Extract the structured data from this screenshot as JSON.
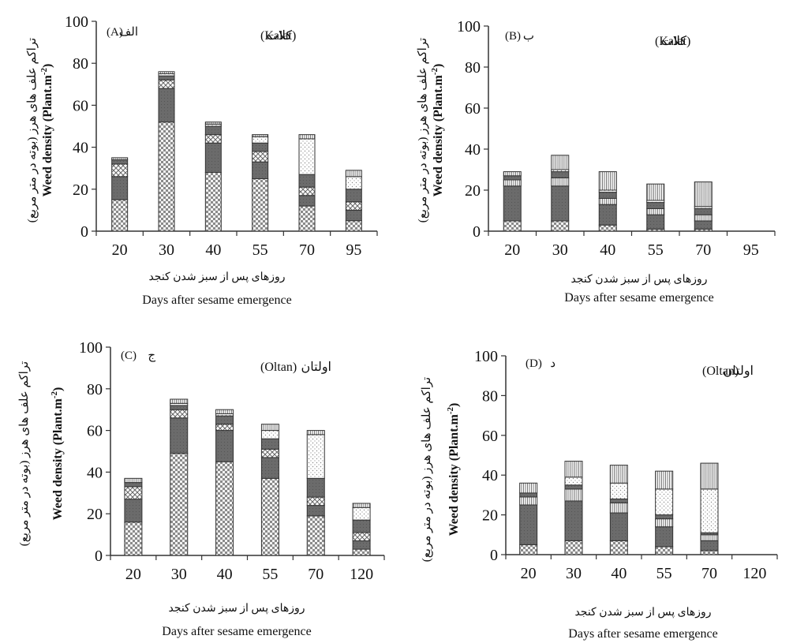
{
  "figure": {
    "colors": {
      "axis": "#333333",
      "tick_text": "#111111",
      "bar_outline": "#333333"
    }
  },
  "chart_data": [
    {
      "type": "bar",
      "stacked": true,
      "panel_label": "(A)",
      "panel_label_fa": "الف",
      "location": "(Kalat)",
      "location_fa": "کلات",
      "categories": [
        "20",
        "30",
        "40",
        "55",
        "70",
        "95"
      ],
      "ylim": [
        0,
        100
      ],
      "yticks": [
        "0",
        "20",
        "40",
        "60",
        "80",
        "100"
      ],
      "ylabel": "Weed density (Plant.m",
      "ylabel_sup": "-2",
      "ylabel_close": ")",
      "ylabel_fa": "تراکم علف های هرز (بوته در متر مربع)",
      "xlabel": "Days after sesame emergence",
      "xlabel_fa": "روزهای پس از سبز شدن کنجد",
      "series": [
        {
          "style": "checker",
          "values": [
            15,
            52,
            28,
            25,
            12,
            5
          ]
        },
        {
          "style": "dark",
          "values": [
            11,
            16,
            14,
            8,
            5,
            5
          ]
        },
        {
          "style": "crossed",
          "values": [
            6,
            4,
            4,
            5,
            4,
            4
          ]
        },
        {
          "style": "dark",
          "values": [
            2,
            2,
            4,
            4,
            6,
            6
          ]
        },
        {
          "style": "dotted",
          "values": [
            0,
            1,
            1,
            3,
            17,
            6
          ]
        },
        {
          "style": "hatched",
          "values": [
            1,
            1,
            1,
            1,
            2,
            3
          ]
        }
      ]
    },
    {
      "type": "bar",
      "stacked": true,
      "panel_label": "(B)",
      "panel_label_fa": "ب",
      "location": "(Kalat)",
      "location_fa": "کلات",
      "categories": [
        "20",
        "30",
        "40",
        "55",
        "70",
        "95"
      ],
      "ylim": [
        0,
        100
      ],
      "yticks": [
        "0",
        "20",
        "40",
        "60",
        "80",
        "100"
      ],
      "ylabel": "Weed density (Plant.m",
      "ylabel_sup": "-2",
      "ylabel_close": ")",
      "ylabel_fa": "تراکم علف های هرز (بوته در متر مربع)",
      "xlabel": "Days after sesame emergence",
      "xlabel_fa": "روزهای پس از سبز شدن کنجد",
      "series": [
        {
          "style": "checker",
          "values": [
            5,
            5,
            3,
            1,
            1,
            0
          ]
        },
        {
          "style": "dark",
          "values": [
            17,
            17,
            10,
            7,
            4,
            0
          ]
        },
        {
          "style": "hatched",
          "values": [
            3,
            4,
            3,
            3,
            3,
            0
          ]
        },
        {
          "style": "dark",
          "values": [
            2,
            3,
            3,
            3,
            3,
            0
          ]
        },
        {
          "style": "dotted",
          "values": [
            0,
            1,
            1,
            1,
            1,
            0
          ]
        },
        {
          "style": "hatched",
          "values": [
            2,
            7,
            9,
            8,
            12,
            0
          ]
        }
      ]
    },
    {
      "type": "bar",
      "stacked": true,
      "panel_label": "(C)",
      "panel_label_fa": "ج",
      "location": "(Oltan)",
      "location_fa": "اولتان",
      "categories": [
        "20",
        "30",
        "40",
        "55",
        "70",
        "120"
      ],
      "ylim": [
        0,
        100
      ],
      "yticks": [
        "0",
        "20",
        "40",
        "60",
        "80",
        "100"
      ],
      "ylabel": "Weed density (Plant.m",
      "ylabel_sup": "-2",
      "ylabel_close": ")",
      "ylabel_fa": "تراکم علف های هرز (بوته در متر مربع)",
      "xlabel": "Days after sesame emergence",
      "xlabel_fa": "روزهای پس از سبز شدن کنجد",
      "series": [
        {
          "style": "checker",
          "values": [
            16,
            49,
            45,
            37,
            19,
            3
          ]
        },
        {
          "style": "dark",
          "values": [
            11,
            17,
            15,
            10,
            5,
            4
          ]
        },
        {
          "style": "crossed",
          "values": [
            6,
            4,
            3,
            4,
            4,
            4
          ]
        },
        {
          "style": "dark",
          "values": [
            2,
            2,
            4,
            5,
            9,
            6
          ]
        },
        {
          "style": "dotted",
          "values": [
            0,
            1,
            1,
            4,
            21,
            6
          ]
        },
        {
          "style": "hatched",
          "values": [
            2,
            2,
            2,
            3,
            2,
            2
          ]
        }
      ]
    },
    {
      "type": "bar",
      "stacked": true,
      "panel_label": "(D)",
      "panel_label_fa": "د",
      "location": "(Oltan)",
      "location_fa": "اولتان",
      "categories": [
        "20",
        "30",
        "40",
        "55",
        "70",
        "120"
      ],
      "ylim": [
        0,
        100
      ],
      "yticks": [
        "0",
        "20",
        "40",
        "60",
        "80",
        "100"
      ],
      "ylabel": "Weed density (Plant.m",
      "ylabel_sup": "-2",
      "ylabel_close": ")",
      "ylabel_fa": "تراکم علف های هرز (بوته در متر مربع)",
      "xlabel": "Days after sesame emergence",
      "xlabel_fa": "روزهای پس از سبز شدن کنجد",
      "series": [
        {
          "style": "checker",
          "values": [
            5,
            7,
            7,
            4,
            2,
            0
          ]
        },
        {
          "style": "dark",
          "values": [
            20,
            20,
            14,
            10,
            5,
            0
          ]
        },
        {
          "style": "hatched",
          "values": [
            4,
            6,
            5,
            4,
            3,
            0
          ]
        },
        {
          "style": "dark",
          "values": [
            2,
            2,
            2,
            2,
            1,
            0
          ]
        },
        {
          "style": "dotted",
          "values": [
            0,
            4,
            8,
            13,
            22,
            0
          ]
        },
        {
          "style": "hatched",
          "values": [
            5,
            8,
            9,
            9,
            13,
            0
          ]
        }
      ]
    }
  ]
}
